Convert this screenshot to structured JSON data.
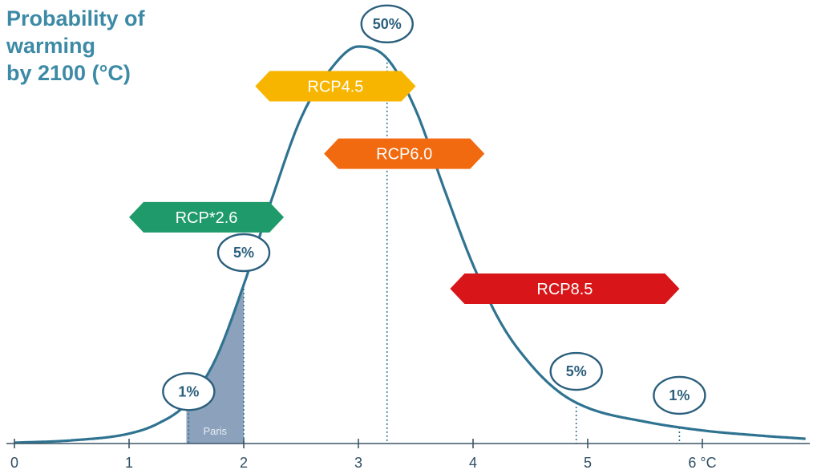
{
  "chart_data": {
    "type": "area",
    "title_lines": [
      "Probability of",
      "warming",
      "by 2100 (°C)"
    ],
    "x_ticks": [
      "0",
      "1",
      "2",
      "3",
      "4",
      "5",
      "6 °C"
    ],
    "xlim": [
      0,
      6.9
    ],
    "grid": false,
    "curve": {
      "x": [
        0,
        0.5,
        1,
        1.25,
        1.5,
        1.75,
        2,
        2.25,
        2.5,
        2.75,
        3,
        3.25,
        3.5,
        3.75,
        4,
        4.25,
        4.5,
        4.75,
        5,
        5.5,
        6,
        6.5,
        6.9
      ],
      "y": [
        0.2,
        0.8,
        2.5,
        5,
        10,
        21,
        40,
        62,
        82,
        94,
        100,
        97,
        84,
        64,
        45,
        30,
        20,
        13,
        9,
        5.5,
        3.3,
        2,
        1.2
      ]
    },
    "percentile_markers": [
      {
        "label": "1%",
        "x": 1.52
      },
      {
        "label": "5%",
        "x": 2.0
      },
      {
        "label": "50%",
        "x": 3.25
      },
      {
        "label": "5%",
        "x": 4.9
      },
      {
        "label": "1%",
        "x": 5.8
      }
    ],
    "shaded_region": {
      "label": "Paris",
      "x_range": [
        1.5,
        2.0
      ],
      "color": "#7f97b5"
    },
    "scenarios": [
      {
        "label": "RCP*2.6",
        "color": "#1f9a6a",
        "x_range": [
          1.0,
          2.35
        ],
        "y": 57
      },
      {
        "label": "RCP4.5",
        "color": "#f7b500",
        "x_range": [
          2.1,
          3.5
        ],
        "y": 90
      },
      {
        "label": "RCP6.0",
        "color": "#f26a10",
        "x_range": [
          2.7,
          4.1
        ],
        "y": 73
      },
      {
        "label": "RCP8.5",
        "color": "#d81619",
        "x_range": [
          3.8,
          5.8
        ],
        "y": 39
      }
    ],
    "colors": {
      "curve": "#2f7391",
      "axis": "#3b5566",
      "circle_stroke": "#2b5f7d"
    }
  }
}
